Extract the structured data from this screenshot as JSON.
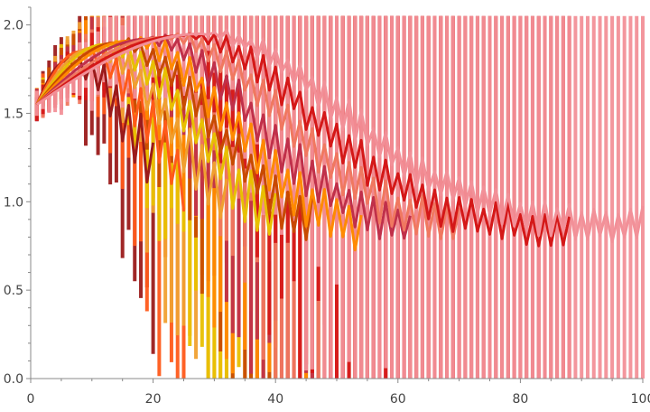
{
  "chart_data": {
    "type": "line",
    "title": "",
    "xlabel": "",
    "ylabel": "",
    "xlim": [
      0,
      100
    ],
    "ylim": [
      0,
      2.1
    ],
    "x_ticks": [
      "0",
      "20",
      "40",
      "60",
      "80",
      "100"
    ],
    "y_ticks": [
      "0.0",
      "0.5",
      "1.0",
      "1.5",
      "2.0"
    ],
    "grid": false,
    "legend": "none",
    "start_value": 1.55,
    "series": [
      {
        "color": "#9b1b1b",
        "peak_x": 6,
        "peak_y": 1.8,
        "end_x": 20,
        "decay": 0.06,
        "noise": 0.22,
        "floor": 0.55
      },
      {
        "color": "#ff5a1a",
        "peak_x": 8,
        "peak_y": 1.85,
        "end_x": 25,
        "decay": 0.055,
        "noise": 0.2,
        "floor": 0.6
      },
      {
        "color": "#f0a030",
        "peak_x": 10,
        "peak_y": 1.87,
        "end_x": 32,
        "decay": 0.048,
        "noise": 0.18,
        "floor": 0.65
      },
      {
        "color": "#e8c000",
        "peak_x": 12,
        "peak_y": 1.89,
        "end_x": 40,
        "decay": 0.042,
        "noise": 0.16,
        "floor": 0.7
      },
      {
        "color": "#c84a00",
        "peak_x": 14,
        "peak_y": 1.9,
        "end_x": 46,
        "decay": 0.038,
        "noise": 0.15,
        "floor": 0.75
      },
      {
        "color": "#ff8a00",
        "peak_x": 16,
        "peak_y": 1.91,
        "end_x": 54,
        "decay": 0.034,
        "noise": 0.14,
        "floor": 0.78
      },
      {
        "color": "#c0304a",
        "peak_x": 19,
        "peak_y": 1.92,
        "end_x": 62,
        "decay": 0.03,
        "noise": 0.13,
        "floor": 0.8
      },
      {
        "color": "#f07860",
        "peak_x": 22,
        "peak_y": 1.93,
        "end_x": 70,
        "decay": 0.026,
        "noise": 0.12,
        "floor": 0.82
      },
      {
        "color": "#d41818",
        "peak_x": 25,
        "peak_y": 1.94,
        "end_x": 88,
        "decay": 0.022,
        "noise": 0.11,
        "floor": 0.84
      },
      {
        "color": "#f29098",
        "peak_x": 28,
        "peak_y": 1.95,
        "end_x": 100,
        "decay": 0.018,
        "noise": 0.1,
        "floor": 0.86
      }
    ]
  }
}
